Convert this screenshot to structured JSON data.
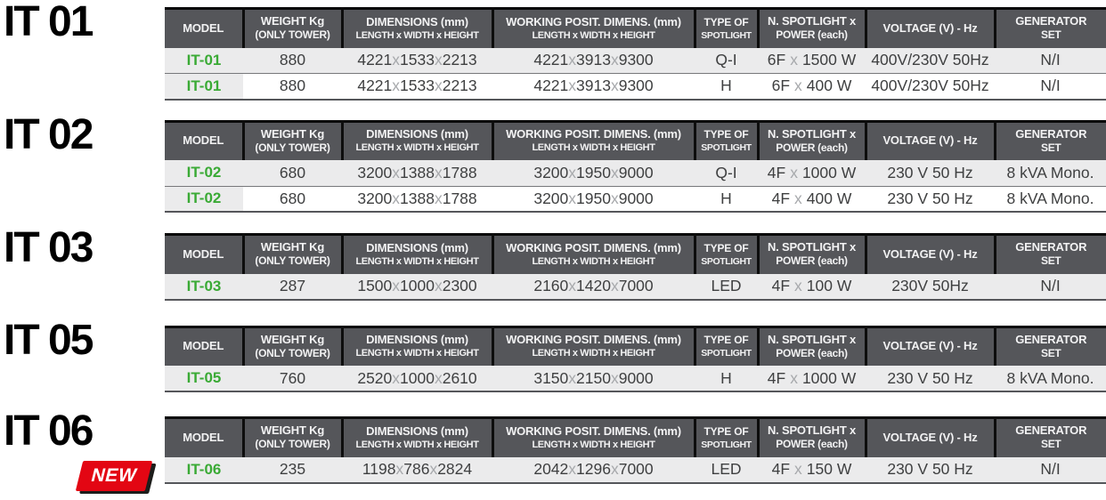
{
  "colors": {
    "header_bg": "#55565a",
    "header_text": "#f2f2f3",
    "row_alt_bg": "#ebebec",
    "model_green": "#3aaa35",
    "separator_gray": "#a7a9ac",
    "badge_red": "#e30613"
  },
  "dim_separator": "x",
  "badge_new": "NEW",
  "columns": [
    {
      "line1": "MODEL",
      "line2": ""
    },
    {
      "line1": "WEIGHT Kg",
      "line2": "(ONLY TOWER)"
    },
    {
      "line1": "DIMENSIONS (mm)",
      "line2": "LENGTH x WIDTH x HEIGHT"
    },
    {
      "line1": "WORKING POSIT. DIMENS. (mm)",
      "line2": "LENGTH x WIDTH x HEIGHT"
    },
    {
      "line1": "TYPE OF",
      "line2": "SPOTLIGHT"
    },
    {
      "line1": "N. SPOTLIGHT x",
      "line2": "POWER (each)"
    },
    {
      "line1": "VOLTAGE (V) - Hz",
      "line2": ""
    },
    {
      "line1": "GENERATOR",
      "line2": "SET"
    }
  ],
  "sections": [
    {
      "title": "IT 01",
      "rows": [
        {
          "model": "IT-01",
          "weight": "880",
          "dims": [
            "4221",
            "1533",
            "2213"
          ],
          "working_dims": [
            "4221",
            "3913",
            "9300"
          ],
          "spotlight_type": "Q-I",
          "spotlight_count": "6F",
          "spotlight_power": "1500 W",
          "voltage": "400V/230V 50Hz",
          "generator": "N/I"
        },
        {
          "model": "IT-01",
          "weight": "880",
          "dims": [
            "4221",
            "1533",
            "2213"
          ],
          "working_dims": [
            "4221",
            "3913",
            "9300"
          ],
          "spotlight_type": "H",
          "spotlight_count": "6F",
          "spotlight_power": "400 W",
          "voltage": "400V/230V 50Hz",
          "generator": "N/I"
        }
      ]
    },
    {
      "title": "IT 02",
      "rows": [
        {
          "model": "IT-02",
          "weight": "680",
          "dims": [
            "3200",
            "1388",
            "1788"
          ],
          "working_dims": [
            "3200",
            "1950",
            "9000"
          ],
          "spotlight_type": "Q-I",
          "spotlight_count": "4F",
          "spotlight_power": "1000 W",
          "voltage": "230 V 50 Hz",
          "generator": "8 kVA Mono."
        },
        {
          "model": "IT-02",
          "weight": "680",
          "dims": [
            "3200",
            "1388",
            "1788"
          ],
          "working_dims": [
            "3200",
            "1950",
            "9000"
          ],
          "spotlight_type": "H",
          "spotlight_count": "4F",
          "spotlight_power": "400 W",
          "voltage": "230 V 50 Hz",
          "generator": "8 kVA Mono."
        }
      ]
    },
    {
      "title": "IT 03",
      "rows": [
        {
          "model": "IT-03",
          "weight": "287",
          "dims": [
            "1500",
            "1000",
            "2300"
          ],
          "working_dims": [
            "2160",
            "1420",
            "7000"
          ],
          "spotlight_type": "LED",
          "spotlight_count": "4F",
          "spotlight_power": "100 W",
          "voltage": "230V 50Hz",
          "generator": "N/I"
        }
      ]
    },
    {
      "title": "IT 05",
      "rows": [
        {
          "model": "IT-05",
          "weight": "760",
          "dims": [
            "2520",
            "1000",
            "2610"
          ],
          "working_dims": [
            "3150",
            "2150",
            "9000"
          ],
          "spotlight_type": "H",
          "spotlight_count": "4F",
          "spotlight_power": "1000 W",
          "voltage": "230 V 50 Hz",
          "generator": "8 kVA Mono."
        }
      ]
    },
    {
      "title": "IT 06",
      "has_new_badge": true,
      "rows": [
        {
          "model": "IT-06",
          "weight": "235",
          "dims": [
            "1198",
            "786",
            "2824"
          ],
          "working_dims": [
            "2042",
            "1296",
            "7000"
          ],
          "spotlight_type": "LED",
          "spotlight_count": "4F",
          "spotlight_power": "150 W",
          "voltage": "230 V 50 Hz",
          "generator": "N/I"
        }
      ]
    }
  ]
}
